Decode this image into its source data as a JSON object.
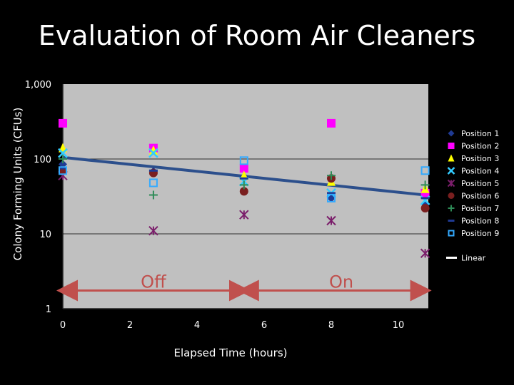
{
  "chart_data": {
    "type": "scatter",
    "title": "Evaluation of Room Air Cleaners",
    "xlabel": "Elapsed Time (hours)",
    "ylabel": "Colony Forming Units (CFUs)",
    "xlim": [
      -0.5,
      11
    ],
    "ylim": [
      1,
      1000
    ],
    "y_scale": "log",
    "x_ticks": [
      0,
      2,
      4,
      6,
      8,
      10
    ],
    "y_ticks": [
      1,
      10,
      100,
      1000
    ],
    "y_tick_labels": [
      "1",
      "10",
      "100",
      "1,000"
    ],
    "legend_position": "right",
    "plot_background": "#c0c0c0",
    "series": [
      {
        "name": "Position 1",
        "marker": "diamond",
        "color": "#1f3a93",
        "x": [
          0,
          2.7,
          5.4,
          8,
          10.8
        ],
        "y": [
          85,
          68,
          58,
          30,
          25
        ]
      },
      {
        "name": "Position 2",
        "marker": "square",
        "color": "#ff00ff",
        "x": [
          0,
          2.7,
          5.4,
          8,
          10.8
        ],
        "y": [
          300,
          140,
          75,
          300,
          35
        ]
      },
      {
        "name": "Position 3",
        "marker": "triangle",
        "color": "#ffff00",
        "x": [
          0,
          2.7,
          5.4,
          8,
          10.8
        ],
        "y": [
          140,
          130,
          60,
          50,
          40
        ]
      },
      {
        "name": "Position 4",
        "marker": "x",
        "color": "#33ccff",
        "x": [
          0,
          2.7,
          5.4,
          8,
          10.8
        ],
        "y": [
          120,
          120,
          50,
          35,
          28
        ]
      },
      {
        "name": "Position 5",
        "marker": "asterisk",
        "color": "#7b1e6b",
        "x": [
          0,
          2.7,
          5.4,
          8,
          10.8
        ],
        "y": [
          60,
          11,
          18,
          15,
          5.5
        ]
      },
      {
        "name": "Position 6",
        "marker": "circle",
        "color": "#7a1f1f",
        "x": [
          0,
          2.7,
          5.4,
          8,
          10.8
        ],
        "y": [
          70,
          65,
          37,
          55,
          22
        ]
      },
      {
        "name": "Position 7",
        "marker": "plus",
        "color": "#2e8b57",
        "x": [
          0,
          2.7,
          5.4,
          8,
          10.8
        ],
        "y": [
          100,
          33,
          45,
          60,
          45
        ]
      },
      {
        "name": "Position 8",
        "marker": "dash",
        "color": "#1f3a93",
        "x": [
          0,
          2.7,
          5.4,
          8,
          10.8
        ],
        "y": [
          75,
          70,
          55,
          35,
          30
        ]
      },
      {
        "name": "Position 9",
        "marker": "hollow-square",
        "color": "#33aaff",
        "x": [
          0,
          2.7,
          5.4,
          8,
          10.8
        ],
        "y": [
          70,
          48,
          95,
          30,
          70
        ]
      }
    ],
    "trendline": {
      "name": "Linear",
      "color": "#2c4f8c",
      "x": [
        0,
        10.8
      ],
      "y": [
        105,
        33
      ]
    },
    "annotations": [
      {
        "text": "Off",
        "x": 2.7,
        "y": 1.9,
        "arrow_from": 0,
        "arrow_to": 5.4,
        "arrow_y": 1.75
      },
      {
        "text": "On",
        "x": 8.3,
        "y": 1.9,
        "arrow_from": 5.4,
        "arrow_to": 10.8,
        "arrow_y": 1.75
      }
    ]
  }
}
